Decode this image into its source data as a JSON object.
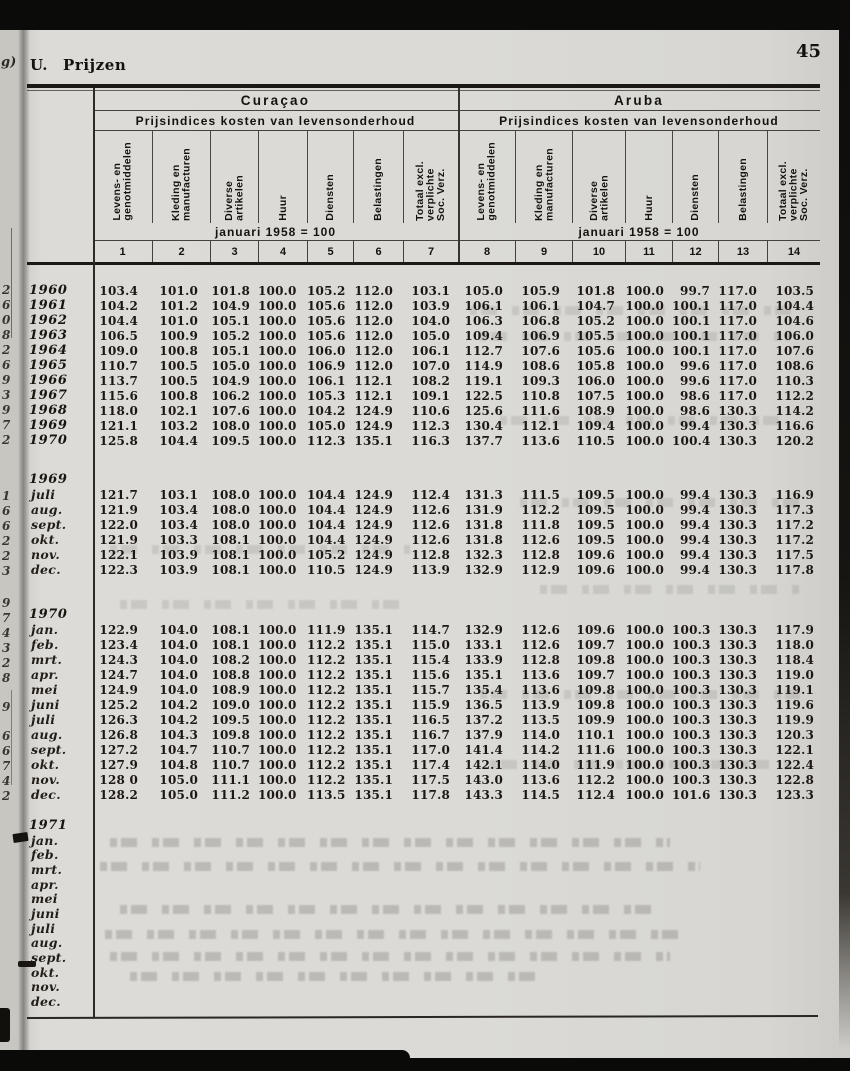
{
  "page": {
    "section_label": "U. Prijzen",
    "page_number": "45"
  },
  "marginalia": {
    "corner_fragment": "g)",
    "left_edge_digits": [
      {
        "t": 283,
        "ch": "2"
      },
      {
        "t": 298,
        "ch": "6"
      },
      {
        "t": 313,
        "ch": "0"
      },
      {
        "t": 328,
        "ch": "8"
      },
      {
        "t": 343,
        "ch": "2"
      },
      {
        "t": 358,
        "ch": "6"
      },
      {
        "t": 373,
        "ch": "9"
      },
      {
        "t": 388,
        "ch": "3"
      },
      {
        "t": 403,
        "ch": "9"
      },
      {
        "t": 418,
        "ch": "7"
      },
      {
        "t": 433,
        "ch": "2"
      },
      {
        "t": 489,
        "ch": "1"
      },
      {
        "t": 504,
        "ch": "6"
      },
      {
        "t": 519,
        "ch": "6"
      },
      {
        "t": 534,
        "ch": "2"
      },
      {
        "t": 549,
        "ch": "2"
      },
      {
        "t": 564,
        "ch": "3"
      },
      {
        "t": 596,
        "ch": "9"
      },
      {
        "t": 611,
        "ch": "7"
      },
      {
        "t": 626,
        "ch": "4"
      },
      {
        "t": 641,
        "ch": "3"
      },
      {
        "t": 656,
        "ch": "2"
      },
      {
        "t": 671,
        "ch": "8"
      },
      {
        "t": 700,
        "ch": "9"
      },
      {
        "t": 729,
        "ch": "6"
      },
      {
        "t": 744,
        "ch": "6"
      },
      {
        "t": 759,
        "ch": "7"
      },
      {
        "t": 774,
        "ch": "4"
      },
      {
        "t": 789,
        "ch": "2"
      }
    ]
  },
  "table": {
    "groups": [
      {
        "title": "Curaçao"
      },
      {
        "title": "Aruba"
      }
    ],
    "subtitle": "Prijsindices kosten van levensonderhoud",
    "base_note": "januari 1958 = 100",
    "columns": [
      [
        "Levens- en",
        "genotmiddelen"
      ],
      [
        "Kleding en",
        "manufacturen"
      ],
      [
        "Diverse",
        "artikelen"
      ],
      [
        "Huur"
      ],
      [
        "Diensten"
      ],
      [
        "Belastingen"
      ],
      [
        "Totaal excl.",
        "verplichte",
        "Soc. Verz."
      ]
    ],
    "column_numbers": [
      "1",
      "2",
      "3",
      "4",
      "5",
      "6",
      "7",
      "8",
      "9",
      "10",
      "11",
      "12",
      "13",
      "14"
    ],
    "blocks": [
      {
        "heading": null,
        "row_style": "year",
        "rows": [
          {
            "label": "1960",
            "values": [
              "103.4",
              "101.0",
              "101.8",
              "100.0",
              "105.2",
              "112.0",
              "103.1",
              "105.0",
              "105.9",
              "101.8",
              "100.0",
              "99.7",
              "117.0",
              "103.5"
            ]
          },
          {
            "label": "1961",
            "values": [
              "104.2",
              "101.2",
              "104.9",
              "100.0",
              "105.6",
              "112.0",
              "103.9",
              "106.1",
              "106.1",
              "104.7",
              "100.0",
              "100.1",
              "117.0",
              "104.4"
            ]
          },
          {
            "label": "1962",
            "values": [
              "104.4",
              "101.0",
              "105.1",
              "100.0",
              "105.6",
              "112.0",
              "104.0",
              "106.3",
              "106.8",
              "105.2",
              "100.0",
              "100.1",
              "117.0",
              "104.6"
            ]
          },
          {
            "label": "1963",
            "values": [
              "106.5",
              "100.9",
              "105.2",
              "100.0",
              "105.6",
              "112.0",
              "105.0",
              "109.4",
              "106.9",
              "105.5",
              "100.0",
              "100.1",
              "117.0",
              "106.0"
            ]
          },
          {
            "label": "1964",
            "values": [
              "109.0",
              "100.8",
              "105.1",
              "100.0",
              "106.0",
              "112.0",
              "106.1",
              "112.7",
              "107.6",
              "105.6",
              "100.0",
              "100.1",
              "117.0",
              "107.6"
            ]
          },
          {
            "label": "1965",
            "values": [
              "110.7",
              "100.5",
              "105.0",
              "100.0",
              "106.9",
              "112.0",
              "107.0",
              "114.9",
              "108.6",
              "105.8",
              "100.0",
              "99.6",
              "117.0",
              "108.6"
            ]
          },
          {
            "label": "1966",
            "values": [
              "113.7",
              "100.5",
              "104.9",
              "100.0",
              "106.1",
              "112.1",
              "108.2",
              "119.1",
              "109.3",
              "106.0",
              "100.0",
              "99.6",
              "117.0",
              "110.3"
            ]
          },
          {
            "label": "1967",
            "values": [
              "115.6",
              "100.8",
              "106.2",
              "100.0",
              "105.3",
              "112.1",
              "109.1",
              "122.5",
              "110.8",
              "107.5",
              "100.0",
              "98.6",
              "117.0",
              "112.2"
            ]
          },
          {
            "label": "1968",
            "values": [
              "118.0",
              "102.1",
              "107.6",
              "100.0",
              "104.2",
              "124.9",
              "110.6",
              "125.6",
              "111.6",
              "108.9",
              "100.0",
              "98.6",
              "130.3",
              "114.2"
            ]
          },
          {
            "label": "1969",
            "values": [
              "121.1",
              "103.2",
              "108.0",
              "100.0",
              "105.0",
              "124.9",
              "112.3",
              "130.4",
              "112.1",
              "109.4",
              "100.0",
              "99.4",
              "130.3",
              "116.6"
            ]
          },
          {
            "label": "1970",
            "values": [
              "125.8",
              "104.4",
              "109.5",
              "100.0",
              "112.3",
              "135.1",
              "116.3",
              "137.7",
              "113.6",
              "110.5",
              "100.0",
              "100.4",
              "130.3",
              "120.2"
            ]
          }
        ]
      },
      {
        "heading": "1969",
        "row_style": "month",
        "rows": [
          {
            "label": "juli",
            "values": [
              "121.7",
              "103.1",
              "108.0",
              "100.0",
              "104.4",
              "124.9",
              "112.4",
              "131.3",
              "111.5",
              "109.5",
              "100.0",
              "99.4",
              "130.3",
              "116.9"
            ]
          },
          {
            "label": "aug.",
            "values": [
              "121.9",
              "103.4",
              "108.0",
              "100.0",
              "104.4",
              "124.9",
              "112.6",
              "131.9",
              "112.2",
              "109.5",
              "100.0",
              "99.4",
              "130.3",
              "117.3"
            ]
          },
          {
            "label": "sept.",
            "values": [
              "122.0",
              "103.4",
              "108.0",
              "100.0",
              "104.4",
              "124.9",
              "112.6",
              "131.8",
              "111.8",
              "109.5",
              "100.0",
              "99.4",
              "130.3",
              "117.2"
            ]
          },
          {
            "label": "okt.",
            "values": [
              "121.9",
              "103.3",
              "108.1",
              "100.0",
              "104.4",
              "124.9",
              "112.6",
              "131.8",
              "112.6",
              "109.5",
              "100.0",
              "99.4",
              "130.3",
              "117.2"
            ]
          },
          {
            "label": "nov.",
            "values": [
              "122.1",
              "103.9",
              "108.1",
              "100.0",
              "105.2",
              "124.9",
              "112.8",
              "132.3",
              "112.8",
              "109.6",
              "100.0",
              "99.4",
              "130.3",
              "117.5"
            ]
          },
          {
            "label": "dec.",
            "values": [
              "122.3",
              "103.9",
              "108.1",
              "100.0",
              "110.5",
              "124.9",
              "113.9",
              "132.9",
              "112.9",
              "109.6",
              "100.0",
              "99.4",
              "130.3",
              "117.8"
            ]
          }
        ]
      },
      {
        "heading": "1970",
        "row_style": "month",
        "rows": [
          {
            "label": "jan.",
            "values": [
              "122.9",
              "104.0",
              "108.1",
              "100.0",
              "111.9",
              "135.1",
              "114.7",
              "132.9",
              "112.6",
              "109.6",
              "100.0",
              "100.3",
              "130.3",
              "117.9"
            ]
          },
          {
            "label": "feb.",
            "values": [
              "123.4",
              "104.0",
              "108.1",
              "100.0",
              "112.2",
              "135.1",
              "115.0",
              "133.1",
              "112.6",
              "109.7",
              "100.0",
              "100.3",
              "130.3",
              "118.0"
            ]
          },
          {
            "label": "mrt.",
            "values": [
              "124.3",
              "104.0",
              "108.2",
              "100.0",
              "112.2",
              "135.1",
              "115.4",
              "133.9",
              "112.8",
              "109.8",
              "100.0",
              "100.3",
              "130.3",
              "118.4"
            ]
          },
          {
            "label": "apr.",
            "values": [
              "124.7",
              "104.0",
              "108.8",
              "100.0",
              "112.2",
              "135.1",
              "115.6",
              "135.1",
              "113.6",
              "109.7",
              "100.0",
              "100.3",
              "130.3",
              "119.0"
            ]
          },
          {
            "label": "mei",
            "values": [
              "124.9",
              "104.0",
              "108.9",
              "100.0",
              "112.2",
              "135.1",
              "115.7",
              "135.4",
              "113.6",
              "109.8",
              "100.0",
              "100.3",
              "130.3",
              "119.1"
            ]
          },
          {
            "label": "juni",
            "values": [
              "125.2",
              "104.2",
              "109.0",
              "100.0",
              "112.2",
              "135.1",
              "115.9",
              "136.5",
              "113.9",
              "109.8",
              "100.0",
              "100.3",
              "130.3",
              "119.6"
            ]
          },
          {
            "label": "juli",
            "values": [
              "126.3",
              "104.2",
              "109.5",
              "100.0",
              "112.2",
              "135.1",
              "116.5",
              "137.2",
              "113.5",
              "109.9",
              "100.0",
              "100.3",
              "130.3",
              "119.9"
            ]
          },
          {
            "label": "aug.",
            "values": [
              "126.8",
              "104.3",
              "109.8",
              "100.0",
              "112.2",
              "135.1",
              "116.7",
              "137.9",
              "114.0",
              "110.1",
              "100.0",
              "100.3",
              "130.3",
              "120.3"
            ]
          },
          {
            "label": "sept.",
            "values": [
              "127.2",
              "104.7",
              "110.7",
              "100.0",
              "112.2",
              "135.1",
              "117.0",
              "141.4",
              "114.2",
              "111.6",
              "100.0",
              "100.3",
              "130.3",
              "122.1"
            ]
          },
          {
            "label": "okt.",
            "values": [
              "127.9",
              "104.8",
              "110.7",
              "100.0",
              "112.2",
              "135.1",
              "117.4",
              "142.1",
              "114.0",
              "111.9",
              "100.0",
              "100.3",
              "130.3",
              "122.4"
            ]
          },
          {
            "label": "nov.",
            "values": [
              "128 0",
              "105.0",
              "111.1",
              "100.0",
              "112.2",
              "135.1",
              "117.5",
              "143.0",
              "113.6",
              "112.2",
              "100.0",
              "100.3",
              "130.3",
              "122.8"
            ]
          },
          {
            "label": "dec.",
            "values": [
              "128.2",
              "105.0",
              "111.2",
              "100.0",
              "113.5",
              "135.1",
              "117.8",
              "143.3",
              "114.5",
              "112.4",
              "100.0",
              "101.6",
              "130.3",
              "123.3"
            ]
          }
        ]
      },
      {
        "heading": "1971",
        "row_style": "month",
        "rows": [
          {
            "label": "jan.",
            "values": []
          },
          {
            "label": "feb.",
            "values": []
          },
          {
            "label": "mrt.",
            "values": []
          },
          {
            "label": "apr.",
            "values": []
          },
          {
            "label": "mei",
            "values": []
          },
          {
            "label": "juni",
            "values": []
          },
          {
            "label": "juli",
            "values": []
          },
          {
            "label": "aug.",
            "values": []
          },
          {
            "label": "sept.",
            "values": []
          },
          {
            "label": "okt.",
            "values": []
          },
          {
            "label": "nov.",
            "values": []
          },
          {
            "label": "dec.",
            "values": []
          }
        ]
      }
    ]
  }
}
